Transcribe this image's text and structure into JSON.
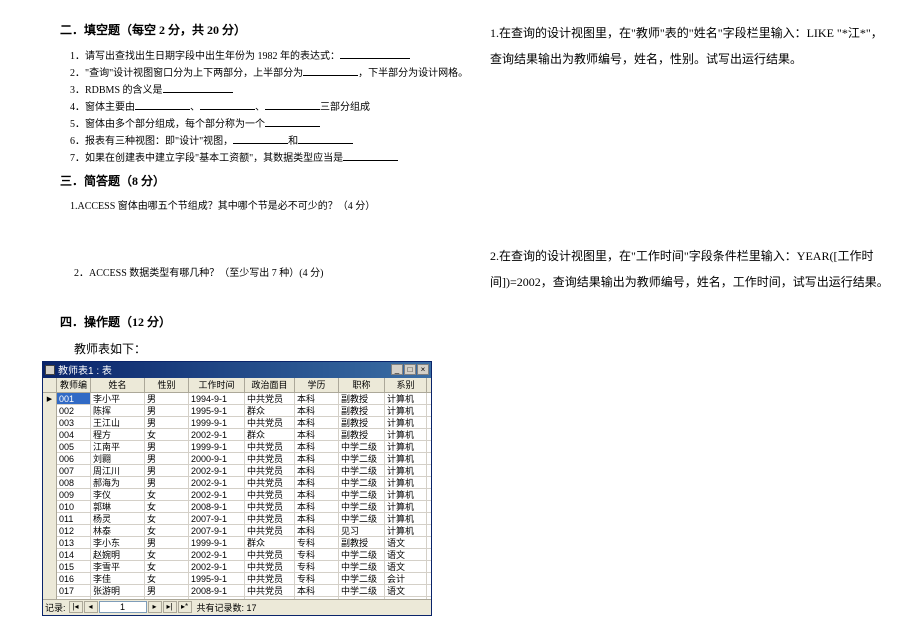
{
  "left": {
    "sec2_title": "二．填空题（每空 2 分，共 20 分）",
    "q1_prefix": "1．请写出查找出生日期字段中出生年份为 1982 年的表达式：",
    "q2_prefix": "2．\"查询\"设计视图窗口分为上下两部分，上半部分为",
    "q2_suffix": "，下半部分为设计网格。",
    "q3_prefix": "3．RDBMS 的含义是",
    "q4_prefix": "4．窗体主要由",
    "q4_mid1": "、",
    "q4_mid2": "、",
    "q4_suffix": "三部分组成",
    "q5_prefix": "5．窗体由多个部分组成，每个部分称为一个",
    "q6_prefix": "6．报表有三种视图：即\"设计\"视图，",
    "q6_suffix": "和",
    "q7_prefix": "7．如果在创建表中建立字段\"基本工资额\"，其数据类型应当是",
    "sec3_title": "三．简答题（8 分）",
    "sa1": "1.ACCESS 窗体由哪五个节组成？其中哪个节是必不可少的？（4 分）",
    "sa2": "2．ACCESS 数据类型有哪几种？（至少写出 7 种）(4 分)",
    "sec4_title": "四．操作题（12 分）",
    "table_intro": "教师表如下：",
    "window_title": "教师表1 : 表",
    "headers": [
      "教师编号",
      "姓名",
      "性别",
      "工作时间",
      "政治面目",
      "学历",
      "职称",
      "系别"
    ],
    "rows": [
      [
        "001",
        "李小平",
        "男",
        "1994-9-1",
        "中共党员",
        "本科",
        "副教授",
        "计算机"
      ],
      [
        "002",
        "陈挥",
        "男",
        "1995-9-1",
        "群众",
        "本科",
        "副教授",
        "计算机"
      ],
      [
        "003",
        "王江山",
        "男",
        "1999-9-1",
        "中共党员",
        "本科",
        "副教授",
        "计算机"
      ],
      [
        "004",
        "程方",
        "女",
        "2002-9-1",
        "群众",
        "本科",
        "副教授",
        "计算机"
      ],
      [
        "005",
        "江南平",
        "男",
        "1999-9-1",
        "中共党员",
        "本科",
        "中学二级",
        "计算机"
      ],
      [
        "006",
        "刘翾",
        "男",
        "2000-9-1",
        "中共党员",
        "本科",
        "中学二级",
        "计算机"
      ],
      [
        "007",
        "周江川",
        "男",
        "2002-9-1",
        "中共党员",
        "本科",
        "中学二级",
        "计算机"
      ],
      [
        "008",
        "郝海为",
        "男",
        "2002-9-1",
        "中共党员",
        "本科",
        "中学二级",
        "计算机"
      ],
      [
        "009",
        "李仪",
        "女",
        "2002-9-1",
        "中共党员",
        "本科",
        "中学二级",
        "计算机"
      ],
      [
        "010",
        "郭琳",
        "女",
        "2008-9-1",
        "中共党员",
        "本科",
        "中学二级",
        "计算机"
      ],
      [
        "011",
        "杨灵",
        "女",
        "2007-9-1",
        "中共党员",
        "本科",
        "中学二级",
        "计算机"
      ],
      [
        "012",
        "林泰",
        "女",
        "2007-9-1",
        "中共党员",
        "本科",
        "见习",
        "计算机"
      ],
      [
        "013",
        "李小东",
        "男",
        "1999-9-1",
        "群众",
        "专科",
        "副教授",
        "语文"
      ],
      [
        "014",
        "赵婉明",
        "女",
        "2002-9-1",
        "中共党员",
        "专科",
        "中学二级",
        "语文"
      ],
      [
        "015",
        "李雪平",
        "女",
        "2002-9-1",
        "中共党员",
        "专科",
        "中学二级",
        "语文"
      ],
      [
        "016",
        "李佳",
        "女",
        "1995-9-1",
        "中共党员",
        "专科",
        "中学二级",
        "会计"
      ],
      [
        "017",
        "张游明",
        "男",
        "2008-9-1",
        "中共党员",
        "本科",
        "中学二级",
        "语文"
      ]
    ],
    "nav_record_label": "记录:",
    "nav_record_current": "1",
    "nav_count_label": "共有记录数: 17"
  },
  "right": {
    "q1": "1.在查询的设计视图里，在\"教师\"表的\"姓名\"字段栏里输入：LIKE \"*江*\"，查询结果输出为教师编号，姓名，性别。试写出运行结果。",
    "q2": "2.在查询的设计视图里，在\"工作时间\"字段条件栏里输入：YEAR([工作时间])=2002，查询结果输出为教师编号，姓名，工作时间，试写出运行结果。"
  },
  "colors": {
    "titlebar_start": "#0a246a",
    "titlebar_end": "#3a6ea5",
    "win_bg": "#ece9d8",
    "border": "#aca899",
    "selected_bg": "#316ac5"
  }
}
